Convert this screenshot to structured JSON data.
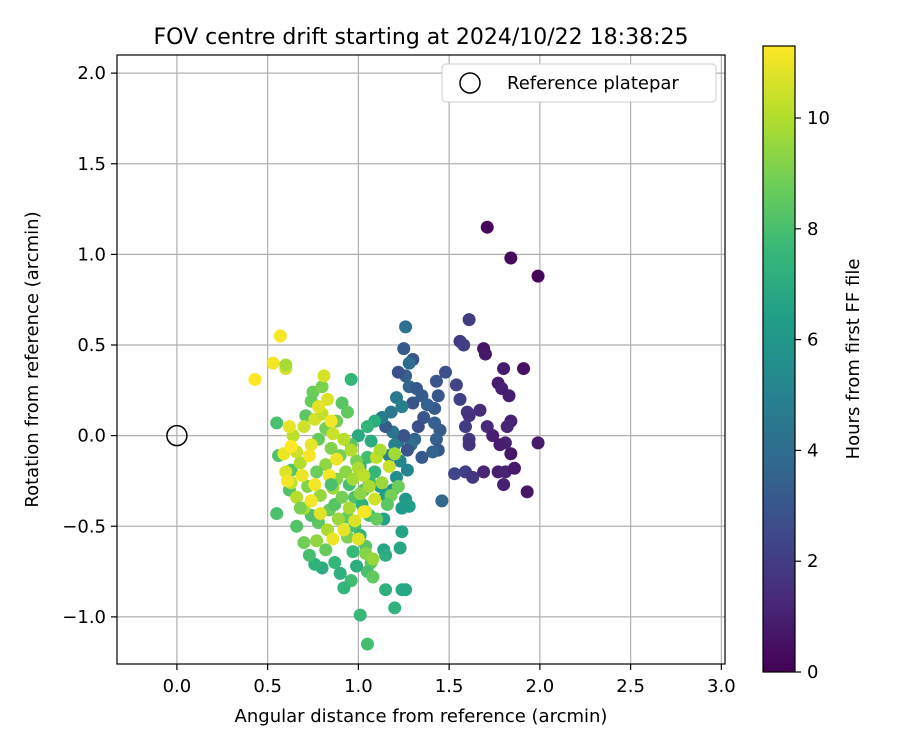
{
  "chart_data": {
    "type": "scatter",
    "title": "FOV centre drift starting at 2024/10/22 18:38:25",
    "xlabel": "Angular distance from reference (arcmin)",
    "ylabel": "Rotation from reference (arcmin)",
    "xlim": [
      -0.33,
      3.02
    ],
    "ylim": [
      -1.26,
      2.1
    ],
    "xticks": [
      {
        "value": 0.0,
        "label": "0.0"
      },
      {
        "value": 0.5,
        "label": "0.5"
      },
      {
        "value": 1.0,
        "label": "1.0"
      },
      {
        "value": 1.5,
        "label": "1.5"
      },
      {
        "value": 2.0,
        "label": "2.0"
      },
      {
        "value": 2.5,
        "label": "2.5"
      },
      {
        "value": 3.0,
        "label": "3.0"
      }
    ],
    "yticks": [
      {
        "value": -1.0,
        "label": "−1.0"
      },
      {
        "value": -0.5,
        "label": "−0.5"
      },
      {
        "value": 0.0,
        "label": "0.0"
      },
      {
        "value": 0.5,
        "label": "0.5"
      },
      {
        "value": 1.0,
        "label": "1.0"
      },
      {
        "value": 1.5,
        "label": "1.5"
      },
      {
        "value": 2.0,
        "label": "2.0"
      }
    ],
    "grid": true,
    "legend": {
      "placement": "top-right",
      "entries": [
        "Reference platepar"
      ]
    },
    "reference_point": {
      "x": 0.0,
      "y": 0.0
    },
    "colorbar": {
      "label": "Hours from first FF file",
      "colormap": "viridis",
      "range": [
        0,
        11.3
      ],
      "ticks": [
        {
          "value": 0,
          "label": "0"
        },
        {
          "value": 2,
          "label": "2"
        },
        {
          "value": 4,
          "label": "4"
        },
        {
          "value": 6,
          "label": "6"
        },
        {
          "value": 8,
          "label": "8"
        },
        {
          "value": 10,
          "label": "10"
        }
      ]
    },
    "points": [
      {
        "x": 1.71,
        "y": 1.15,
        "h": 0.2
      },
      {
        "x": 1.84,
        "y": 0.98,
        "h": 0.3
      },
      {
        "x": 1.99,
        "y": 0.88,
        "h": 0.2
      },
      {
        "x": 1.69,
        "y": 0.48,
        "h": 0.6
      },
      {
        "x": 1.7,
        "y": 0.45,
        "h": 0.7
      },
      {
        "x": 1.8,
        "y": 0.37,
        "h": 0.8
      },
      {
        "x": 1.91,
        "y": 0.37,
        "h": 0.5
      },
      {
        "x": 1.77,
        "y": 0.29,
        "h": 0.9
      },
      {
        "x": 1.79,
        "y": 0.26,
        "h": 1.0
      },
      {
        "x": 1.83,
        "y": 0.22,
        "h": 0.9
      },
      {
        "x": 1.84,
        "y": 0.08,
        "h": 1.0
      },
      {
        "x": 1.82,
        "y": 0.05,
        "h": 1.2
      },
      {
        "x": 1.99,
        "y": -0.04,
        "h": 0.8
      },
      {
        "x": 1.84,
        "y": -0.1,
        "h": 0.7
      },
      {
        "x": 1.81,
        "y": -0.04,
        "h": 1.1
      },
      {
        "x": 1.71,
        "y": 0.05,
        "h": 1.3
      },
      {
        "x": 1.74,
        "y": 0.0,
        "h": 1.0
      },
      {
        "x": 1.78,
        "y": -0.05,
        "h": 0.9
      },
      {
        "x": 1.77,
        "y": -0.2,
        "h": 0.9
      },
      {
        "x": 1.81,
        "y": -0.2,
        "h": 1.1
      },
      {
        "x": 1.86,
        "y": -0.18,
        "h": 0.8
      },
      {
        "x": 1.8,
        "y": -0.27,
        "h": 1.0
      },
      {
        "x": 1.93,
        "y": -0.31,
        "h": 0.7
      },
      {
        "x": 1.69,
        "y": -0.2,
        "h": 1.2
      },
      {
        "x": 1.61,
        "y": 0.64,
        "h": 2.0
      },
      {
        "x": 1.56,
        "y": 0.52,
        "h": 1.9
      },
      {
        "x": 1.58,
        "y": 0.5,
        "h": 2.1
      },
      {
        "x": 1.54,
        "y": 0.28,
        "h": 2.3
      },
      {
        "x": 1.56,
        "y": 0.2,
        "h": 2.2
      },
      {
        "x": 1.6,
        "y": 0.13,
        "h": 1.8
      },
      {
        "x": 1.61,
        "y": 0.11,
        "h": 1.6
      },
      {
        "x": 1.67,
        "y": 0.14,
        "h": 1.5
      },
      {
        "x": 1.59,
        "y": 0.05,
        "h": 2.0
      },
      {
        "x": 1.61,
        "y": -0.02,
        "h": 1.9
      },
      {
        "x": 1.61,
        "y": -0.05,
        "h": 1.7
      },
      {
        "x": 1.59,
        "y": -0.2,
        "h": 2.1
      },
      {
        "x": 1.63,
        "y": -0.23,
        "h": 1.8
      },
      {
        "x": 1.53,
        "y": -0.21,
        "h": 2.4
      },
      {
        "x": 1.48,
        "y": 0.35,
        "h": 2.8
      },
      {
        "x": 1.43,
        "y": 0.3,
        "h": 3.0
      },
      {
        "x": 1.44,
        "y": 0.22,
        "h": 3.1
      },
      {
        "x": 1.42,
        "y": 0.15,
        "h": 3.2
      },
      {
        "x": 1.42,
        "y": 0.07,
        "h": 3.5
      },
      {
        "x": 1.45,
        "y": 0.03,
        "h": 3.3
      },
      {
        "x": 1.43,
        "y": -0.02,
        "h": 3.4
      },
      {
        "x": 1.44,
        "y": -0.08,
        "h": 3.0
      },
      {
        "x": 1.41,
        "y": -0.09,
        "h": 3.6
      },
      {
        "x": 1.46,
        "y": -0.36,
        "h": 3.8
      },
      {
        "x": 1.25,
        "y": 0.48,
        "h": 3.2
      },
      {
        "x": 1.3,
        "y": 0.42,
        "h": 3.0
      },
      {
        "x": 1.28,
        "y": 0.4,
        "h": 4.0
      },
      {
        "x": 1.26,
        "y": 0.33,
        "h": 3.4
      },
      {
        "x": 1.22,
        "y": 0.35,
        "h": 2.8
      },
      {
        "x": 1.28,
        "y": 0.27,
        "h": 3.7
      },
      {
        "x": 1.32,
        "y": 0.26,
        "h": 3.1
      },
      {
        "x": 1.35,
        "y": 0.22,
        "h": 3.3
      },
      {
        "x": 1.3,
        "y": 0.18,
        "h": 2.9
      },
      {
        "x": 1.38,
        "y": 0.17,
        "h": 3.5
      },
      {
        "x": 1.36,
        "y": 0.1,
        "h": 3.0
      },
      {
        "x": 1.33,
        "y": 0.05,
        "h": 2.7
      },
      {
        "x": 1.31,
        "y": -0.02,
        "h": 3.6
      },
      {
        "x": 1.29,
        "y": -0.05,
        "h": 4.1
      },
      {
        "x": 1.35,
        "y": -0.12,
        "h": 3.2
      },
      {
        "x": 1.27,
        "y": -0.08,
        "h": 3.0
      },
      {
        "x": 1.22,
        "y": -0.03,
        "h": 3.8
      },
      {
        "x": 1.25,
        "y": 0.0,
        "h": 2.9
      },
      {
        "x": 1.19,
        "y": 0.02,
        "h": 4.3
      },
      {
        "x": 1.15,
        "y": 0.05,
        "h": 3.3
      },
      {
        "x": 1.18,
        "y": 0.13,
        "h": 4.5
      },
      {
        "x": 1.26,
        "y": 0.6,
        "h": 4.2
      },
      {
        "x": 1.21,
        "y": 0.21,
        "h": 4.6
      },
      {
        "x": 1.24,
        "y": 0.16,
        "h": 4.9
      },
      {
        "x": 1.13,
        "y": 0.1,
        "h": 4.7
      },
      {
        "x": 1.2,
        "y": -0.05,
        "h": 5.0
      },
      {
        "x": 1.17,
        "y": -0.11,
        "h": 5.2
      },
      {
        "x": 1.23,
        "y": -0.14,
        "h": 5.3
      },
      {
        "x": 1.27,
        "y": -0.19,
        "h": 5.1
      },
      {
        "x": 1.21,
        "y": -0.23,
        "h": 5.5
      },
      {
        "x": 1.26,
        "y": -0.35,
        "h": 6.0
      },
      {
        "x": 1.28,
        "y": -0.39,
        "h": 6.3
      },
      {
        "x": 1.24,
        "y": -0.4,
        "h": 6.1
      },
      {
        "x": 1.19,
        "y": -0.3,
        "h": 5.8
      },
      {
        "x": 1.15,
        "y": -0.33,
        "h": 6.4
      },
      {
        "x": 1.12,
        "y": -0.28,
        "h": 6.2
      },
      {
        "x": 1.14,
        "y": -0.46,
        "h": 6.5
      },
      {
        "x": 1.24,
        "y": -0.53,
        "h": 6.6
      },
      {
        "x": 1.23,
        "y": -0.62,
        "h": 6.8
      },
      {
        "x": 1.14,
        "y": -0.63,
        "h": 6.7
      },
      {
        "x": 1.15,
        "y": -0.66,
        "h": 7.0
      },
      {
        "x": 1.24,
        "y": -0.85,
        "h": 6.9
      },
      {
        "x": 1.26,
        "y": -0.85,
        "h": 6.8
      },
      {
        "x": 1.15,
        "y": -0.85,
        "h": 7.2
      },
      {
        "x": 1.2,
        "y": -0.95,
        "h": 7.3
      },
      {
        "x": 1.01,
        "y": -0.99,
        "h": 7.6
      },
      {
        "x": 1.05,
        "y": -1.15,
        "h": 7.9
      },
      {
        "x": 0.96,
        "y": 0.31,
        "h": 7.5
      },
      {
        "x": 1.09,
        "y": 0.08,
        "h": 7.1
      },
      {
        "x": 1.05,
        "y": 0.05,
        "h": 7.4
      },
      {
        "x": 1.0,
        "y": 0.0,
        "h": 6.9
      },
      {
        "x": 1.07,
        "y": -0.03,
        "h": 7.0
      },
      {
        "x": 1.05,
        "y": -0.12,
        "h": 7.8
      },
      {
        "x": 1.01,
        "y": -0.17,
        "h": 7.2
      },
      {
        "x": 1.09,
        "y": -0.2,
        "h": 7.5
      },
      {
        "x": 1.06,
        "y": -0.25,
        "h": 7.6
      },
      {
        "x": 1.03,
        "y": -0.3,
        "h": 8.2
      },
      {
        "x": 0.98,
        "y": -0.34,
        "h": 8.1
      },
      {
        "x": 0.95,
        "y": -0.27,
        "h": 7.9
      },
      {
        "x": 1.02,
        "y": -0.38,
        "h": 7.3
      },
      {
        "x": 1.06,
        "y": -0.44,
        "h": 7.7
      },
      {
        "x": 0.98,
        "y": -0.5,
        "h": 8.0
      },
      {
        "x": 1.01,
        "y": -0.55,
        "h": 7.4
      },
      {
        "x": 1.04,
        "y": -0.61,
        "h": 8.3
      },
      {
        "x": 0.97,
        "y": -0.64,
        "h": 7.6
      },
      {
        "x": 1.07,
        "y": -0.7,
        "h": 8.4
      },
      {
        "x": 1.05,
        "y": -0.75,
        "h": 8.0
      },
      {
        "x": 1.08,
        "y": -0.78,
        "h": 8.5
      },
      {
        "x": 0.99,
        "y": -0.72,
        "h": 7.1
      },
      {
        "x": 0.96,
        "y": -0.8,
        "h": 7.8
      },
      {
        "x": 0.92,
        "y": -0.84,
        "h": 7.4
      },
      {
        "x": 0.9,
        "y": -0.76,
        "h": 7.2
      },
      {
        "x": 0.87,
        "y": -0.7,
        "h": 7.5
      },
      {
        "x": 0.8,
        "y": -0.73,
        "h": 7.0
      },
      {
        "x": 0.76,
        "y": -0.71,
        "h": 7.3
      },
      {
        "x": 0.73,
        "y": -0.66,
        "h": 7.9
      },
      {
        "x": 0.82,
        "y": -0.63,
        "h": 8.6
      },
      {
        "x": 0.7,
        "y": -0.59,
        "h": 8.8
      },
      {
        "x": 0.66,
        "y": -0.5,
        "h": 8.2
      },
      {
        "x": 0.78,
        "y": -0.48,
        "h": 8.4
      },
      {
        "x": 0.74,
        "y": -0.44,
        "h": 8.1
      },
      {
        "x": 0.84,
        "y": -0.41,
        "h": 8.7
      },
      {
        "x": 0.87,
        "y": -0.38,
        "h": 8.3
      },
      {
        "x": 0.91,
        "y": -0.34,
        "h": 8.9
      },
      {
        "x": 0.94,
        "y": -0.45,
        "h": 8.5
      },
      {
        "x": 0.94,
        "y": -0.56,
        "h": 9.0
      },
      {
        "x": 1.04,
        "y": -0.65,
        "h": 9.2
      },
      {
        "x": 1.08,
        "y": -0.68,
        "h": 9.5
      },
      {
        "x": 0.55,
        "y": -0.43,
        "h": 8.0
      },
      {
        "x": 0.62,
        "y": -0.3,
        "h": 8.2
      },
      {
        "x": 0.63,
        "y": -0.19,
        "h": 8.3
      },
      {
        "x": 0.56,
        "y": -0.11,
        "h": 8.1
      },
      {
        "x": 0.55,
        "y": 0.07,
        "h": 8.0
      },
      {
        "x": 0.71,
        "y": 0.11,
        "h": 8.4
      },
      {
        "x": 0.74,
        "y": 0.19,
        "h": 8.6
      },
      {
        "x": 0.75,
        "y": 0.24,
        "h": 8.7
      },
      {
        "x": 0.8,
        "y": 0.27,
        "h": 9.0
      },
      {
        "x": 0.91,
        "y": 0.18,
        "h": 8.3
      },
      {
        "x": 0.94,
        "y": 0.13,
        "h": 8.5
      },
      {
        "x": 0.88,
        "y": 0.08,
        "h": 8.8
      },
      {
        "x": 0.82,
        "y": 0.04,
        "h": 8.9
      },
      {
        "x": 0.78,
        "y": -0.02,
        "h": 8.6
      },
      {
        "x": 0.85,
        "y": -0.07,
        "h": 9.1
      },
      {
        "x": 0.9,
        "y": -0.11,
        "h": 8.9
      },
      {
        "x": 0.96,
        "y": -0.05,
        "h": 8.4
      },
      {
        "x": 0.99,
        "y": -0.14,
        "h": 9.0
      },
      {
        "x": 0.93,
        "y": -0.2,
        "h": 9.3
      },
      {
        "x": 0.88,
        "y": -0.24,
        "h": 9.2
      },
      {
        "x": 0.82,
        "y": -0.16,
        "h": 9.4
      },
      {
        "x": 0.77,
        "y": -0.2,
        "h": 8.7
      },
      {
        "x": 0.72,
        "y": -0.28,
        "h": 9.1
      },
      {
        "x": 0.79,
        "y": -0.33,
        "h": 9.5
      },
      {
        "x": 0.86,
        "y": -0.29,
        "h": 9.6
      },
      {
        "x": 0.97,
        "y": -0.24,
        "h": 9.7
      },
      {
        "x": 1.01,
        "y": -0.32,
        "h": 9.3
      },
      {
        "x": 0.95,
        "y": -0.4,
        "h": 9.8
      },
      {
        "x": 0.89,
        "y": -0.46,
        "h": 9.6
      },
      {
        "x": 0.83,
        "y": -0.52,
        "h": 9.9
      },
      {
        "x": 0.77,
        "y": -0.58,
        "h": 9.4
      },
      {
        "x": 0.7,
        "y": -0.4,
        "h": 10.0
      },
      {
        "x": 0.66,
        "y": -0.34,
        "h": 10.1
      },
      {
        "x": 0.63,
        "y": -0.26,
        "h": 10.3
      },
      {
        "x": 0.68,
        "y": -0.15,
        "h": 10.0
      },
      {
        "x": 0.66,
        "y": -0.09,
        "h": 10.4
      },
      {
        "x": 0.64,
        "y": 0.0,
        "h": 10.2
      },
      {
        "x": 0.7,
        "y": 0.05,
        "h": 10.5
      },
      {
        "x": 0.76,
        "y": 0.09,
        "h": 10.6
      },
      {
        "x": 0.8,
        "y": 0.12,
        "h": 10.3
      },
      {
        "x": 0.83,
        "y": 0.2,
        "h": 10.7
      },
      {
        "x": 0.81,
        "y": 0.33,
        "h": 10.6
      },
      {
        "x": 0.78,
        "y": 0.16,
        "h": 10.8
      },
      {
        "x": 0.86,
        "y": 0.01,
        "h": 10.4
      },
      {
        "x": 0.92,
        "y": -0.02,
        "h": 10.1
      },
      {
        "x": 0.96,
        "y": -0.08,
        "h": 10.0
      },
      {
        "x": 1.0,
        "y": -0.18,
        "h": 9.9
      },
      {
        "x": 1.03,
        "y": -0.22,
        "h": 10.2
      },
      {
        "x": 1.06,
        "y": -0.28,
        "h": 9.8
      },
      {
        "x": 1.09,
        "y": -0.35,
        "h": 10.5
      },
      {
        "x": 1.04,
        "y": -0.42,
        "h": 10.6
      },
      {
        "x": 0.98,
        "y": -0.47,
        "h": 10.7
      },
      {
        "x": 0.92,
        "y": -0.52,
        "h": 10.9
      },
      {
        "x": 0.86,
        "y": -0.57,
        "h": 11.0
      },
      {
        "x": 0.79,
        "y": -0.43,
        "h": 10.8
      },
      {
        "x": 0.74,
        "y": -0.36,
        "h": 11.1
      },
      {
        "x": 0.69,
        "y": -0.22,
        "h": 11.0
      },
      {
        "x": 0.73,
        "y": -0.11,
        "h": 11.2
      },
      {
        "x": 0.6,
        "y": -0.2,
        "h": 10.7
      },
      {
        "x": 0.61,
        "y": -0.25,
        "h": 11.1
      },
      {
        "x": 0.59,
        "y": -0.1,
        "h": 11.0
      },
      {
        "x": 0.63,
        "y": -0.06,
        "h": 11.3
      },
      {
        "x": 0.62,
        "y": 0.05,
        "h": 10.9
      },
      {
        "x": 0.57,
        "y": 0.55,
        "h": 11.2
      },
      {
        "x": 0.53,
        "y": 0.4,
        "h": 11.1
      },
      {
        "x": 0.6,
        "y": 0.37,
        "h": 10.6
      },
      {
        "x": 0.6,
        "y": 0.39,
        "h": 9.8
      },
      {
        "x": 0.43,
        "y": 0.31,
        "h": 11.3
      },
      {
        "x": 0.76,
        "y": -0.27,
        "h": 11.2
      },
      {
        "x": 0.84,
        "y": -0.22,
        "h": 11.1
      },
      {
        "x": 0.88,
        "y": -0.13,
        "h": 11.0
      },
      {
        "x": 0.74,
        "y": -0.05,
        "h": 10.9
      },
      {
        "x": 0.85,
        "y": 0.08,
        "h": 11.1
      },
      {
        "x": 1.0,
        "y": -0.57,
        "h": 10.8
      },
      {
        "x": 1.03,
        "y": -0.42,
        "h": 11.2
      },
      {
        "x": 1.1,
        "y": -0.12,
        "h": 10.2
      },
      {
        "x": 1.12,
        "y": -0.08,
        "h": 9.9
      },
      {
        "x": 1.17,
        "y": -0.17,
        "h": 10.4
      },
      {
        "x": 1.2,
        "y": -0.1,
        "h": 9.7
      },
      {
        "x": 1.13,
        "y": -0.26,
        "h": 9.6
      },
      {
        "x": 1.18,
        "y": -0.33,
        "h": 8.9
      },
      {
        "x": 1.22,
        "y": -0.28,
        "h": 8.7
      },
      {
        "x": 1.16,
        "y": -0.38,
        "h": 8.4
      },
      {
        "x": 1.1,
        "y": -0.46,
        "h": 8.6
      },
      {
        "x": 0.68,
        "y": -0.4,
        "h": 9.0
      },
      {
        "x": 0.85,
        "y": -0.27,
        "h": 8.0
      }
    ]
  }
}
